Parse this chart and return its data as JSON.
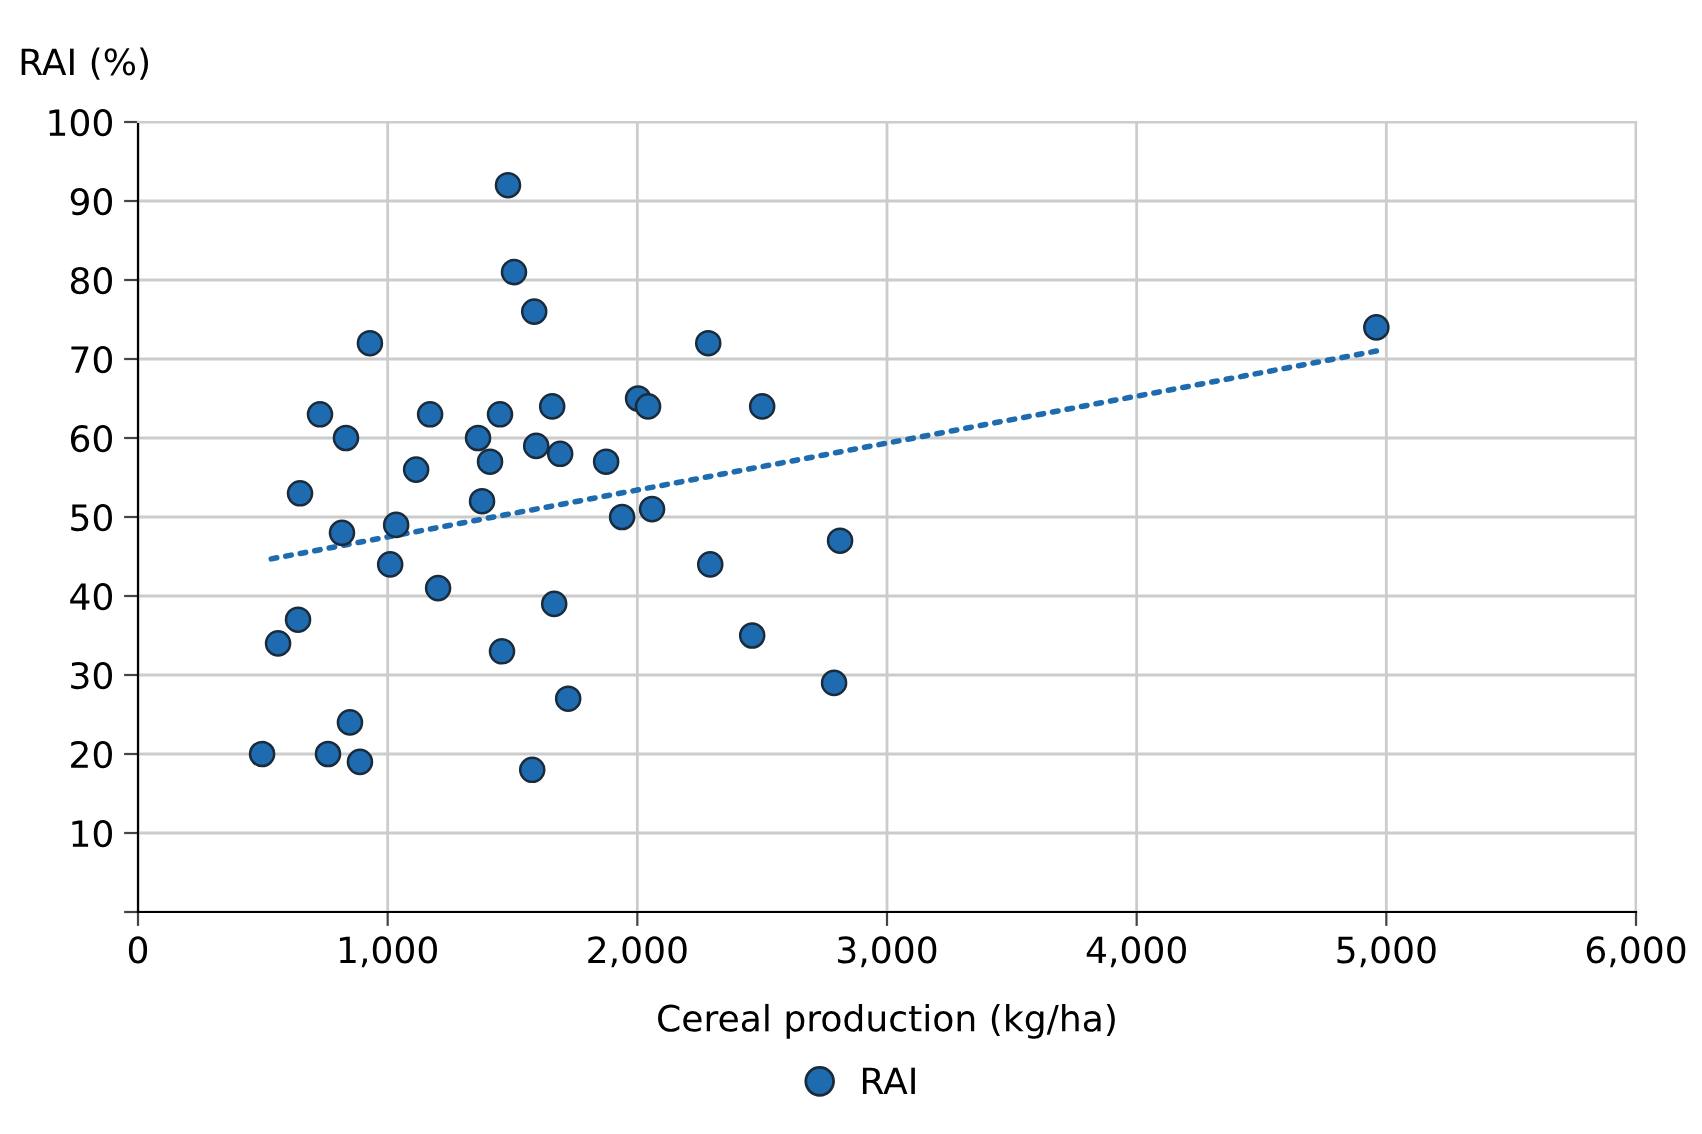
{
  "chart_data": {
    "type": "scatter",
    "xlabel": "Cereal production (kg/ha)",
    "ylabel": "RAI (%)",
    "xlim": [
      0,
      6000
    ],
    "xticks": [
      {
        "value": 0,
        "label": "0"
      },
      {
        "value": 1000,
        "label": "1,000"
      },
      {
        "value": 2000,
        "label": "2,000"
      },
      {
        "value": 3000,
        "label": "3,000"
      },
      {
        "value": 4000,
        "label": "4,000"
      },
      {
        "value": 5000,
        "label": "5,000"
      },
      {
        "value": 6000,
        "label": "6,000"
      }
    ],
    "ylim": [
      0,
      100
    ],
    "yticks": [
      {
        "value": 0,
        "label": null
      },
      10,
      20,
      30,
      40,
      50,
      60,
      70,
      80,
      90,
      100
    ],
    "grid": true,
    "legend": "bottom",
    "series": [
      {
        "name": "RAI",
        "color": "#1f6bb0",
        "marker": "circle",
        "x": [
          497,
          561,
          641,
          649,
          729,
          761,
          817,
          833,
          849,
          889,
          929,
          1010,
          1034,
          1114,
          1170,
          1202,
          1362,
          1378,
          1410,
          1450,
          1458,
          1482,
          1506,
          1579,
          1587,
          1595,
          1659,
          1667,
          1691,
          1723,
          1875,
          1939,
          2003,
          2043,
          2059,
          2284,
          2292,
          2460,
          2500,
          2788,
          2812,
          4960
        ],
        "values": [
          20,
          34,
          37,
          53,
          63,
          20,
          48,
          60,
          24,
          19,
          72,
          44,
          49,
          56,
          63,
          41,
          60,
          52,
          57,
          63,
          33,
          92,
          81,
          18,
          76,
          59,
          64,
          39,
          58,
          27,
          57,
          50,
          65,
          64,
          51,
          72,
          44,
          35,
          64,
          29,
          47,
          74
        ]
      },
      {
        "type": "line",
        "line_style": "dotted",
        "marker": "none",
        "color": "#1f6bb0",
        "x": [
          500,
          4960
        ],
        "values": [
          44.5,
          71
        ]
      }
    ]
  }
}
